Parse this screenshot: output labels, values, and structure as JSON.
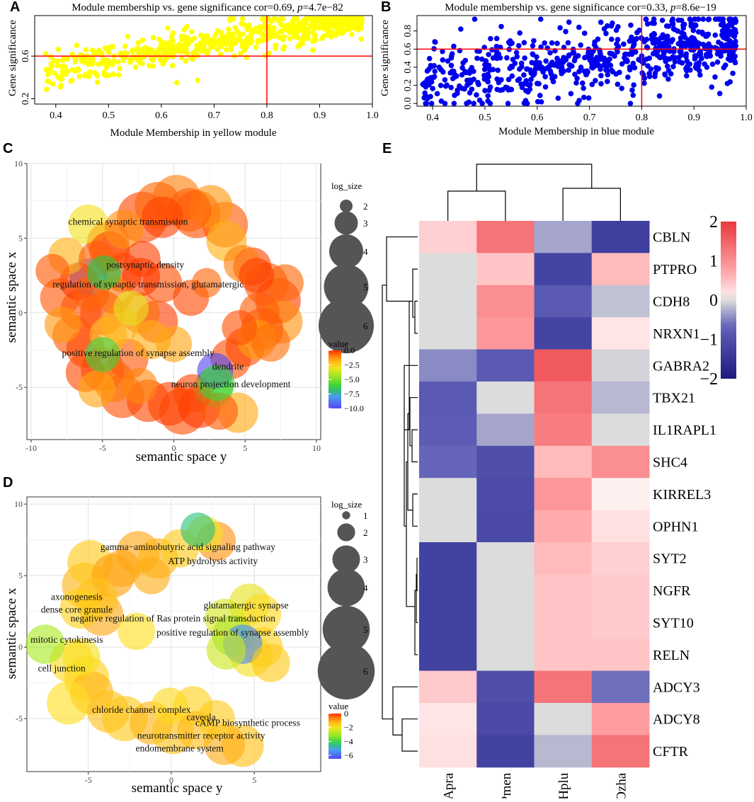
{
  "panel_letters": [
    "A",
    "B",
    "C",
    "D",
    "E"
  ],
  "colors": {
    "yellow_points": "#ffff00",
    "blue_points": "#0000ee",
    "threshold_line": "#ff0000",
    "heatmap_low": "#1a1a80",
    "heatmap_mid": "#dcdcdc",
    "heatmap_high": "#e8383d"
  },
  "chart_data": [
    {
      "id": "A",
      "type": "scatter",
      "title_prefix": "Module membership vs. gene significance cor=0.69, ",
      "title_p": "p",
      "title_suffix": "=4.7e−82",
      "xlabel": "Module Membership in yellow module",
      "ylabel": "Gene significance",
      "xlim": [
        0.36,
        1.0
      ],
      "ylim": [
        0.15,
        0.98
      ],
      "xticks": [
        "0.4",
        "0.5",
        "0.6",
        "0.7",
        "0.8",
        "0.9",
        "1.0"
      ],
      "xtick_values": [
        0.4,
        0.5,
        0.6,
        0.7,
        0.8,
        0.9,
        1.0
      ],
      "yticks": [
        "0.2",
        "0.6"
      ],
      "ytick_values": [
        0.2,
        0.6
      ],
      "vline": 0.8,
      "hline": 0.6,
      "n_points": 700,
      "correlation": 0.69,
      "p_value": "4.7e-82",
      "point_color": "#ffff00"
    },
    {
      "id": "B",
      "type": "scatter",
      "title_prefix": "Module membership vs. gene significance cor=0.33, ",
      "title_p": "p",
      "title_suffix": "=8.6e−19",
      "xlabel": "Module Membership in blue module",
      "ylabel": "Gene significance",
      "xlim": [
        0.37,
        1.0
      ],
      "ylim": [
        -0.03,
        0.97
      ],
      "xticks": [
        "0.4",
        "0.5",
        "0.6",
        "0.7",
        "0.8",
        "0.9",
        "1.0"
      ],
      "xtick_values": [
        0.4,
        0.5,
        0.6,
        0.7,
        0.8,
        0.9,
        1.0
      ],
      "yticks": [
        "0.0",
        "0.2",
        "0.4",
        "0.6",
        "0.8"
      ],
      "ytick_values": [
        0.0,
        0.2,
        0.4,
        0.6,
        0.8
      ],
      "vline": 0.8,
      "hline": 0.6,
      "n_points": 700,
      "correlation": 0.33,
      "p_value": "8.6e-19",
      "point_color": "#0000ee"
    },
    {
      "id": "C",
      "type": "bubble",
      "xlabel": "semantic space y",
      "ylabel": "semantic space x",
      "xlim": [
        -10.3,
        10.3
      ],
      "ylim": [
        -8.5,
        10.0
      ],
      "xticks": [
        "-10",
        "-5",
        "0",
        "5",
        "10"
      ],
      "xtick_values": [
        -10,
        -5,
        0,
        5,
        10
      ],
      "yticks": [
        "-5",
        "0",
        "5",
        "10"
      ],
      "ytick_values": [
        -5,
        0,
        5,
        10
      ],
      "labels": [
        {
          "text": "chemical synaptic transmission",
          "x": -3.2,
          "y": 5.9
        },
        {
          "text": "postsynaptic density",
          "x": -2.0,
          "y": 3.0
        },
        {
          "text": "regulation of synaptic transmission, glutamatergic",
          "x": -1.8,
          "y": 1.7
        },
        {
          "text": "positive regulation of synapse assembly",
          "x": -2.5,
          "y": -2.9
        },
        {
          "text": "dendrite",
          "x": 3.8,
          "y": -3.8
        },
        {
          "text": "neuron projection development",
          "x": 4.0,
          "y": -5.0
        }
      ],
      "bubbles": [
        [
          -6.0,
          2.4,
          4.3,
          -8.5
        ],
        [
          2.9,
          -3.9,
          4.2,
          -10.0
        ],
        [
          -4.9,
          2.7,
          4.0,
          -6.5
        ],
        [
          -5.0,
          -2.8,
          4.1,
          -6.0
        ],
        [
          2.8,
          -5.0,
          4.5,
          -5.5
        ],
        [
          -6.0,
          5.9,
          4.6,
          -3.0
        ],
        [
          -4.6,
          4.7,
          4.8,
          -0.5
        ],
        [
          -2.2,
          6.4,
          5.6,
          -0.3
        ],
        [
          -1.1,
          7.2,
          5.2,
          -0.7
        ],
        [
          0.2,
          7.6,
          5.4,
          -1.0
        ],
        [
          1.6,
          6.6,
          5.3,
          -0.4
        ],
        [
          2.6,
          7.1,
          4.9,
          -1.3
        ],
        [
          3.6,
          5.9,
          5.1,
          -0.5
        ],
        [
          -0.8,
          6.4,
          4.7,
          -0.2
        ],
        [
          1.1,
          6.9,
          4.9,
          -0.6
        ],
        [
          -3.5,
          5.6,
          4.5,
          -1.2
        ],
        [
          -4.5,
          4.1,
          4.6,
          -0.3
        ],
        [
          -6.7,
          2.1,
          4.3,
          -0.1
        ],
        [
          -8.0,
          1.0,
          4.5,
          -0.5
        ],
        [
          -7.8,
          -0.8,
          4.2,
          -1.3
        ],
        [
          -6.5,
          0.2,
          4.7,
          -0.4
        ],
        [
          -5.0,
          0.0,
          5.0,
          -0.2
        ],
        [
          -3.8,
          -0.8,
          4.4,
          -1.8
        ],
        [
          -2.4,
          0.0,
          4.6,
          -0.8
        ],
        [
          -1.2,
          -0.6,
          4.8,
          -0.2
        ],
        [
          -4.2,
          1.2,
          4.3,
          -0.9
        ],
        [
          -3.6,
          2.7,
          4.5,
          -0.3
        ],
        [
          -2.3,
          2.4,
          4.4,
          -0.1
        ],
        [
          -0.8,
          2.0,
          4.5,
          -0.4
        ],
        [
          -5.8,
          1.3,
          4.2,
          -0.6
        ],
        [
          -6.2,
          -2.4,
          4.4,
          -0.3
        ],
        [
          -5.0,
          -3.8,
          4.9,
          -0.2
        ],
        [
          -3.2,
          -3.1,
          4.6,
          -0.5
        ],
        [
          -4.2,
          -4.6,
          4.7,
          -0.9
        ],
        [
          -2.4,
          -4.9,
          4.2,
          -1.1
        ],
        [
          -3.6,
          -5.6,
          4.9,
          -0.4
        ],
        [
          -5.4,
          -5.1,
          4.3,
          -1.5
        ],
        [
          -1.8,
          -5.9,
          4.8,
          -0.3
        ],
        [
          -0.3,
          -6.1,
          4.9,
          -0.2
        ],
        [
          0.6,
          -6.6,
          5.2,
          -0.4
        ],
        [
          1.8,
          -6.3,
          4.8,
          -0.1
        ],
        [
          3.2,
          -6.6,
          4.3,
          -0.5
        ],
        [
          4.5,
          -6.7,
          4.6,
          -1.6
        ],
        [
          1.3,
          -5.4,
          4.4,
          -0.3
        ],
        [
          4.0,
          -3.1,
          4.6,
          -0.4
        ],
        [
          5.0,
          -2.3,
          4.5,
          -0.3
        ],
        [
          6.2,
          -1.1,
          4.8,
          -0.4
        ],
        [
          7.3,
          0.8,
          5.1,
          -0.2
        ],
        [
          6.5,
          1.9,
          4.9,
          -0.5
        ],
        [
          5.5,
          3.1,
          4.4,
          -0.3
        ],
        [
          4.8,
          3.3,
          4.3,
          -1.0
        ],
        [
          6.0,
          0.0,
          4.6,
          -0.6
        ],
        [
          7.5,
          -0.6,
          4.9,
          -1.2
        ],
        [
          6.8,
          -2.0,
          4.4,
          -0.8
        ],
        [
          5.8,
          -1.8,
          4.5,
          -1.4
        ],
        [
          4.6,
          -1.0,
          4.1,
          -0.4
        ],
        [
          7.8,
          2.0,
          4.3,
          -0.7
        ],
        [
          5.8,
          2.5,
          4.1,
          -0.2
        ],
        [
          -7.5,
          3.8,
          4.3,
          -1.8
        ],
        [
          -8.5,
          2.8,
          4.0,
          -0.5
        ],
        [
          2.3,
          2.0,
          3.6,
          -0.7
        ],
        [
          -1.6,
          -1.8,
          4.5,
          -1.7
        ],
        [
          -3.0,
          0.3,
          4.1,
          -3.2
        ],
        [
          1.2,
          1.0,
          4.2,
          -0.3
        ],
        [
          -5.4,
          3.6,
          4.2,
          -0.6
        ],
        [
          -4.6,
          -1.5,
          4.3,
          -1.8
        ],
        [
          3.0,
          -4.7,
          4.2,
          -6.0
        ],
        [
          -2.2,
          3.6,
          4.2,
          -0.2
        ],
        [
          3.7,
          4.8,
          4.6,
          -1.8
        ],
        [
          -7.1,
          -1.5,
          4.6,
          -0.5
        ],
        [
          0.0,
          -2.1,
          4.2,
          -1.5
        ],
        [
          -6.2,
          -4.0,
          4.5,
          -0.3
        ]
      ],
      "size_legend_title": "log_size",
      "size_legend_labels": [
        "2",
        "3",
        "4",
        "5",
        "6"
      ],
      "size_legend_values": [
        2,
        3,
        4,
        5,
        6
      ],
      "color_legend_title": "value",
      "color_legend_labels": [
        "0.0",
        "−2.5",
        "−5.0",
        "−7.5",
        "−10.0"
      ],
      "color_legend_values": [
        0.0,
        -2.5,
        -5.0,
        -7.5,
        -10.0
      ],
      "color_range": [
        -10.0,
        0.0
      ]
    },
    {
      "id": "D",
      "type": "bubble",
      "xlabel": "semantic space y",
      "ylabel": "semantic space x",
      "xlim": [
        -8.7,
        9.0
      ],
      "ylim": [
        -8.7,
        10.5
      ],
      "xticks": [
        "-5",
        "0",
        "5"
      ],
      "xtick_values": [
        -5,
        0,
        5
      ],
      "yticks": [
        "-5",
        "0",
        "5",
        "10"
      ],
      "ytick_values": [
        -5,
        0,
        5,
        10
      ],
      "labels": [
        {
          "text": "gamma−aminobutyric acid signaling pathway",
          "x": 1.0,
          "y": 6.8
        },
        {
          "text": "ATP hydrolysis activity",
          "x": 2.5,
          "y": 5.8
        },
        {
          "text": "axonogenesis",
          "x": -5.7,
          "y": 3.3
        },
        {
          "text": "dense core granule",
          "x": -5.7,
          "y": 2.4
        },
        {
          "text": "negative regulation of Ras protein signal transduction",
          "x": 0.1,
          "y": 1.8
        },
        {
          "text": "glutamatergic synapse",
          "x": 4.5,
          "y": 2.7
        },
        {
          "text": "positive regulation of synapse assembly",
          "x": 3.7,
          "y": 0.8
        },
        {
          "text": "mitotic cytokinesis",
          "x": -6.3,
          "y": 0.3
        },
        {
          "text": "cell junction",
          "x": -6.6,
          "y": -1.7
        },
        {
          "text": "chloride channel complex",
          "x": -1.8,
          "y": -4.6
        },
        {
          "text": "caveola",
          "x": 1.8,
          "y": -5.1
        },
        {
          "text": "cAMP biosynthetic process",
          "x": 4.6,
          "y": -5.5
        },
        {
          "text": "neurotransmitter receptor activity",
          "x": 1.8,
          "y": -6.4
        },
        {
          "text": "endomembrane system",
          "x": 0.5,
          "y": -7.3
        }
      ],
      "bubbles": [
        [
          1.6,
          8.2,
          3.7,
          -4.5
        ],
        [
          2.0,
          7.9,
          3.9,
          -2.0
        ],
        [
          2.7,
          7.4,
          4.2,
          -0.8
        ],
        [
          -2.0,
          6.6,
          4.6,
          -1.0
        ],
        [
          -0.8,
          6.2,
          4.3,
          -1.2
        ],
        [
          0.5,
          6.9,
          4.1,
          -1.5
        ],
        [
          -4.9,
          5.9,
          4.8,
          -1.5
        ],
        [
          -3.5,
          5.0,
          4.6,
          -0.9
        ],
        [
          -5.2,
          4.3,
          4.9,
          -1.2
        ],
        [
          -4.5,
          3.4,
          4.5,
          -1.4
        ],
        [
          -4.2,
          2.3,
          4.6,
          -1.0
        ],
        [
          -5.5,
          2.7,
          4.3,
          -1.6
        ],
        [
          -7.6,
          0.2,
          4.2,
          -3.0
        ],
        [
          -2.1,
          1.1,
          4.0,
          -1.8
        ],
        [
          4.7,
          3.0,
          4.4,
          -2.2
        ],
        [
          5.4,
          2.3,
          4.3,
          -1.7
        ],
        [
          3.2,
          2.0,
          4.2,
          -2.4
        ],
        [
          3.7,
          0.8,
          4.4,
          -3.5
        ],
        [
          4.3,
          0.2,
          4.2,
          -5.5
        ],
        [
          4.8,
          -0.6,
          4.5,
          -2.0
        ],
        [
          3.3,
          -0.2,
          4.2,
          -2.5
        ],
        [
          5.5,
          0.0,
          4.3,
          -1.6
        ],
        [
          6.0,
          -1.1,
          4.1,
          -1.5
        ],
        [
          -6.0,
          -1.0,
          4.7,
          -1.7
        ],
        [
          -5.1,
          -2.2,
          4.8,
          -1.6
        ],
        [
          -4.8,
          -3.2,
          4.6,
          -1.2
        ],
        [
          -6.2,
          -3.9,
          4.6,
          -1.8
        ],
        [
          -3.8,
          -4.5,
          4.5,
          -1.4
        ],
        [
          -2.8,
          -5.0,
          4.8,
          -1.5
        ],
        [
          -1.2,
          -5.3,
          4.6,
          -1.2
        ],
        [
          0.1,
          -6.0,
          4.5,
          -1.4
        ],
        [
          1.5,
          -5.8,
          4.1,
          -1.3
        ],
        [
          3.2,
          -6.8,
          4.4,
          -1.1
        ],
        [
          4.3,
          -6.9,
          4.5,
          -1.4
        ],
        [
          -0.1,
          -4.1,
          3.9,
          -1.7
        ],
        [
          1.3,
          -4.1,
          4.2,
          -1.6
        ],
        [
          2.7,
          -5.0,
          4.0,
          -1.5
        ],
        [
          -5.4,
          -0.7,
          4.0,
          -1.9
        ],
        [
          -3.0,
          5.5,
          4.0,
          -1.0
        ],
        [
          -1.2,
          5.0,
          4.0,
          -1.1
        ]
      ],
      "size_legend_title": "log_size",
      "size_legend_labels": [
        "1",
        "2",
        "3",
        "4",
        "5",
        "6"
      ],
      "size_legend_values": [
        1,
        2,
        3,
        4,
        5,
        6
      ],
      "color_legend_title": "value",
      "color_legend_labels": [
        "0",
        "−2",
        "−4",
        "−6"
      ],
      "color_legend_values": [
        0,
        -2,
        -4,
        -6
      ],
      "color_range": [
        -6.5,
        0.0
      ]
    },
    {
      "id": "E",
      "type": "heatmap",
      "columns": [
        "Apra",
        "Pmen",
        "Hplu",
        "Ozha"
      ],
      "rows": [
        "CBLN",
        "PTPRO",
        "CDH8",
        "NRXN1",
        "GABRA2",
        "TBX21",
        "IL1RAPL1",
        "SHC4",
        "KIRREL3",
        "OPHN1",
        "SYT2",
        "NGFR",
        "SYT10",
        "RELN",
        "ADCY3",
        "ADCY8",
        "CFTR"
      ],
      "values": [
        [
          0.35,
          1.3,
          -0.3,
          -1.3
        ],
        [
          0.0,
          0.45,
          -1.2,
          0.55
        ],
        [
          0.0,
          1.0,
          -0.8,
          -0.15
        ],
        [
          0.0,
          0.9,
          -1.2,
          0.15
        ],
        [
          -0.45,
          -0.8,
          1.6,
          -0.05
        ],
        [
          -0.8,
          0.0,
          1.3,
          -0.2
        ],
        [
          -0.75,
          -0.3,
          1.2,
          0.0
        ],
        [
          -0.65,
          -1.0,
          0.55,
          1.0
        ],
        [
          0.0,
          -1.05,
          0.9,
          0.05
        ],
        [
          0.0,
          -1.1,
          0.7,
          0.2
        ],
        [
          -1.25,
          0.0,
          0.55,
          0.35
        ],
        [
          -1.25,
          0.0,
          0.45,
          0.4
        ],
        [
          -1.25,
          0.0,
          0.45,
          0.4
        ],
        [
          -1.25,
          0.0,
          0.45,
          0.45
        ],
        [
          0.4,
          -1.0,
          1.3,
          -0.6
        ],
        [
          0.15,
          -1.1,
          0.0,
          0.85
        ],
        [
          0.2,
          -1.25,
          -0.2,
          1.3
        ]
      ],
      "color_scale_labels": [
        "2",
        "1",
        "0",
        "−1",
        "−2"
      ],
      "color_scale_values": [
        2,
        1,
        0,
        -1,
        -2
      ],
      "color_range": [
        -2,
        2
      ]
    }
  ]
}
